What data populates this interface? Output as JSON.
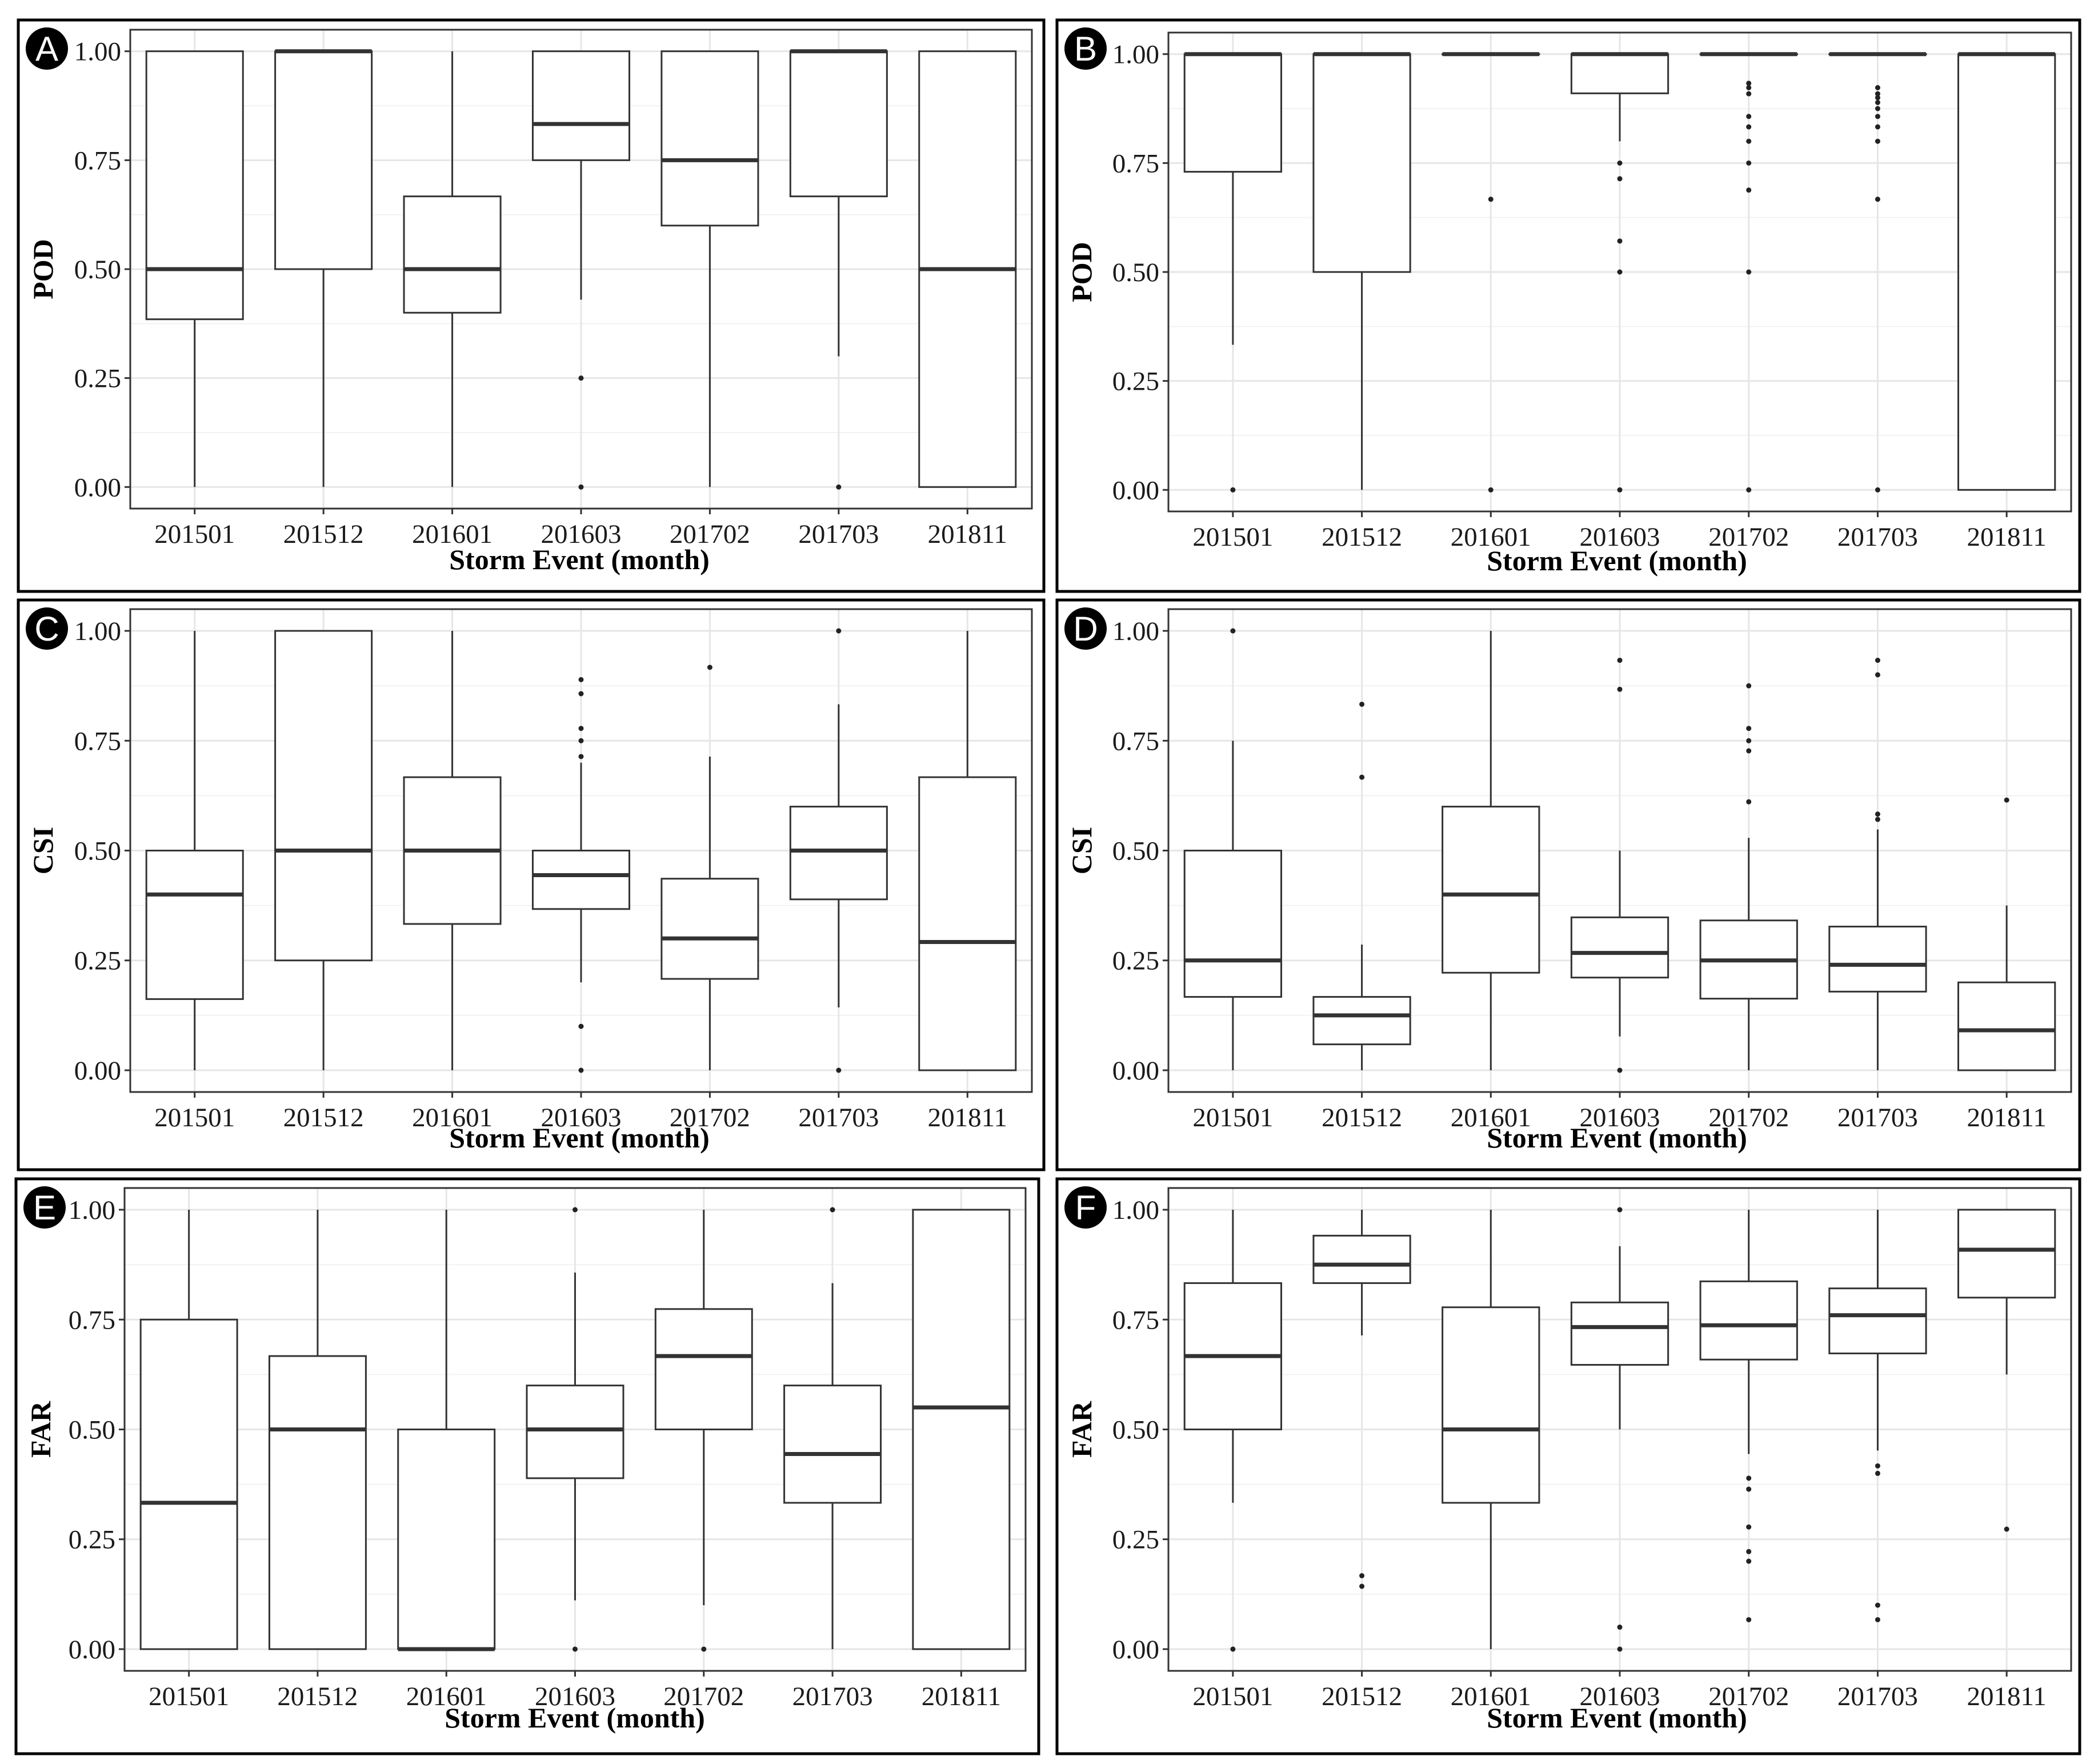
{
  "chart_data": [
    {
      "panel": "A",
      "type": "boxplot",
      "ylabel": "POD",
      "xlabel": "Storm Event (month)",
      "categories": [
        "201501",
        "201512",
        "201601",
        "201603",
        "201702",
        "201703",
        "201811"
      ],
      "yticks": [
        "0.00",
        "0.25",
        "0.50",
        "0.75",
        "1.00"
      ],
      "ylim": [
        0,
        1
      ],
      "grid": true,
      "boxes": [
        {
          "q1": 0.385,
          "median": 0.5,
          "q3": 1.0,
          "lower": 0.0,
          "upper": 1.0,
          "outliers": []
        },
        {
          "q1": 0.5,
          "median": 1.0,
          "q3": 1.0,
          "lower": 0.0,
          "upper": 1.0,
          "outliers": []
        },
        {
          "q1": 0.4,
          "median": 0.5,
          "q3": 0.667,
          "lower": 0.0,
          "upper": 1.0,
          "outliers": []
        },
        {
          "q1": 0.75,
          "median": 0.833,
          "q3": 1.0,
          "lower": 0.43,
          "upper": 1.0,
          "outliers": [
            0.25,
            0.0
          ]
        },
        {
          "q1": 0.6,
          "median": 0.75,
          "q3": 1.0,
          "lower": 0.0,
          "upper": 1.0,
          "outliers": []
        },
        {
          "q1": 0.667,
          "median": 1.0,
          "q3": 1.0,
          "lower": 0.3,
          "upper": 1.0,
          "outliers": [
            0.0
          ]
        },
        {
          "q1": 0.0,
          "median": 0.5,
          "q3": 1.0,
          "lower": 0.0,
          "upper": 1.0,
          "outliers": []
        }
      ]
    },
    {
      "panel": "B",
      "type": "boxplot",
      "ylabel": "POD",
      "xlabel": "Storm Event (month)",
      "categories": [
        "201501",
        "201512",
        "201601",
        "201603",
        "201702",
        "201703",
        "201811"
      ],
      "yticks": [
        "0.00",
        "0.25",
        "0.50",
        "0.75",
        "1.00"
      ],
      "ylim": [
        0,
        1
      ],
      "grid": true,
      "boxes": [
        {
          "q1": 0.73,
          "median": 1.0,
          "q3": 1.0,
          "lower": 0.333,
          "upper": 1.0,
          "outliers": [
            0.0
          ]
        },
        {
          "q1": 0.5,
          "median": 1.0,
          "q3": 1.0,
          "lower": 0.0,
          "upper": 1.0,
          "outliers": []
        },
        {
          "q1": 1.0,
          "median": 1.0,
          "q3": 1.0,
          "lower": 1.0,
          "upper": 1.0,
          "outliers": [
            0.667,
            0.0
          ]
        },
        {
          "q1": 0.91,
          "median": 1.0,
          "q3": 1.0,
          "lower": 0.8,
          "upper": 1.0,
          "outliers": [
            0.75,
            0.714,
            0.571,
            0.5,
            0.0
          ]
        },
        {
          "q1": 1.0,
          "median": 1.0,
          "q3": 1.0,
          "lower": 1.0,
          "upper": 1.0,
          "outliers": [
            0.933,
            0.923,
            0.909,
            0.857,
            0.833,
            0.8,
            0.75,
            0.688,
            0.5,
            0.0
          ]
        },
        {
          "q1": 1.0,
          "median": 1.0,
          "q3": 1.0,
          "lower": 1.0,
          "upper": 1.0,
          "outliers": [
            0.923,
            0.909,
            0.9,
            0.889,
            0.875,
            0.857,
            0.833,
            0.8,
            0.667,
            0.0
          ]
        },
        {
          "q1": 0.0,
          "median": 1.0,
          "q3": 1.0,
          "lower": 0.0,
          "upper": 1.0,
          "outliers": []
        }
      ]
    },
    {
      "panel": "C",
      "type": "boxplot",
      "ylabel": "CSI",
      "xlabel": "Storm Event (month)",
      "categories": [
        "201501",
        "201512",
        "201601",
        "201603",
        "201702",
        "201703",
        "201811"
      ],
      "yticks": [
        "0.00",
        "0.25",
        "0.50",
        "0.75",
        "1.00"
      ],
      "ylim": [
        0,
        1
      ],
      "grid": true,
      "boxes": [
        {
          "q1": 0.162,
          "median": 0.4,
          "q3": 0.5,
          "lower": 0.0,
          "upper": 1.0,
          "outliers": []
        },
        {
          "q1": 0.25,
          "median": 0.5,
          "q3": 1.0,
          "lower": 0.0,
          "upper": 1.0,
          "outliers": []
        },
        {
          "q1": 0.333,
          "median": 0.5,
          "q3": 0.667,
          "lower": 0.0,
          "upper": 1.0,
          "outliers": []
        },
        {
          "q1": 0.367,
          "median": 0.444,
          "q3": 0.5,
          "lower": 0.2,
          "upper": 0.7,
          "outliers": [
            0.889,
            0.857,
            0.778,
            0.75,
            0.714,
            0.1,
            0.0
          ]
        },
        {
          "q1": 0.208,
          "median": 0.3,
          "q3": 0.436,
          "lower": 0.0,
          "upper": 0.714,
          "outliers": [
            0.917
          ]
        },
        {
          "q1": 0.389,
          "median": 0.5,
          "q3": 0.6,
          "lower": 0.143,
          "upper": 0.833,
          "outliers": [
            1.0,
            0.0
          ]
        },
        {
          "q1": 0.0,
          "median": 0.292,
          "q3": 0.667,
          "lower": 0.0,
          "upper": 1.0,
          "outliers": []
        }
      ]
    },
    {
      "panel": "D",
      "type": "boxplot",
      "ylabel": "CSI",
      "xlabel": "Storm Event (month)",
      "categories": [
        "201501",
        "201512",
        "201601",
        "201603",
        "201702",
        "201703",
        "201811"
      ],
      "yticks": [
        "0.00",
        "0.25",
        "0.50",
        "0.75",
        "1.00"
      ],
      "ylim": [
        0,
        1
      ],
      "grid": true,
      "boxes": [
        {
          "q1": 0.167,
          "median": 0.25,
          "q3": 0.5,
          "lower": 0.0,
          "upper": 0.75,
          "outliers": [
            1.0
          ]
        },
        {
          "q1": 0.059,
          "median": 0.125,
          "q3": 0.167,
          "lower": 0.0,
          "upper": 0.286,
          "outliers": [
            0.833,
            0.667
          ]
        },
        {
          "q1": 0.222,
          "median": 0.4,
          "q3": 0.6,
          "lower": 0.0,
          "upper": 1.0,
          "outliers": []
        },
        {
          "q1": 0.211,
          "median": 0.267,
          "q3": 0.348,
          "lower": 0.077,
          "upper": 0.5,
          "outliers": [
            0.933,
            0.867,
            0.0
          ]
        },
        {
          "q1": 0.163,
          "median": 0.25,
          "q3": 0.341,
          "lower": 0.0,
          "upper": 0.529,
          "outliers": [
            0.875,
            0.778,
            0.75,
            0.727,
            0.611
          ]
        },
        {
          "q1": 0.179,
          "median": 0.24,
          "q3": 0.327,
          "lower": 0.0,
          "upper": 0.548,
          "outliers": [
            0.933,
            0.9,
            0.583,
            0.571
          ]
        },
        {
          "q1": 0.0,
          "median": 0.091,
          "q3": 0.2,
          "lower": 0.0,
          "upper": 0.375,
          "outliers": [
            0.615
          ]
        }
      ]
    },
    {
      "panel": "E",
      "type": "boxplot",
      "ylabel": "FAR",
      "xlabel": "Storm Event (month)",
      "categories": [
        "201501",
        "201512",
        "201601",
        "201603",
        "201702",
        "201703",
        "201811"
      ],
      "yticks": [
        "0.00",
        "0.25",
        "0.50",
        "0.75",
        "1.00"
      ],
      "ylim": [
        0,
        1
      ],
      "grid": true,
      "boxes": [
        {
          "q1": 0.0,
          "median": 0.333,
          "q3": 0.75,
          "lower": 0.0,
          "upper": 1.0,
          "outliers": []
        },
        {
          "q1": 0.0,
          "median": 0.5,
          "q3": 0.667,
          "lower": 0.0,
          "upper": 1.0,
          "outliers": []
        },
        {
          "q1": 0.0,
          "median": 0.0,
          "q3": 0.5,
          "lower": 0.0,
          "upper": 1.0,
          "outliers": []
        },
        {
          "q1": 0.389,
          "median": 0.5,
          "q3": 0.6,
          "lower": 0.111,
          "upper": 0.857,
          "outliers": [
            1.0,
            0.0
          ]
        },
        {
          "q1": 0.5,
          "median": 0.667,
          "q3": 0.774,
          "lower": 0.1,
          "upper": 1.0,
          "outliers": [
            0.0
          ]
        },
        {
          "q1": 0.333,
          "median": 0.444,
          "q3": 0.6,
          "lower": 0.0,
          "upper": 0.833,
          "outliers": [
            1.0
          ]
        },
        {
          "q1": 0.0,
          "median": 0.55,
          "q3": 1.0,
          "lower": 0.0,
          "upper": 1.0,
          "outliers": []
        }
      ]
    },
    {
      "panel": "F",
      "type": "boxplot",
      "ylabel": "FAR",
      "xlabel": "Storm Event (month)",
      "categories": [
        "201501",
        "201512",
        "201601",
        "201603",
        "201702",
        "201703",
        "201811"
      ],
      "yticks": [
        "0.00",
        "0.25",
        "0.50",
        "0.75",
        "1.00"
      ],
      "ylim": [
        0,
        1
      ],
      "grid": true,
      "boxes": [
        {
          "q1": 0.5,
          "median": 0.667,
          "q3": 0.833,
          "lower": 0.333,
          "upper": 1.0,
          "outliers": [
            0.0
          ]
        },
        {
          "q1": 0.833,
          "median": 0.875,
          "q3": 0.941,
          "lower": 0.714,
          "upper": 1.0,
          "outliers": [
            0.167,
            0.143
          ]
        },
        {
          "q1": 0.333,
          "median": 0.5,
          "q3": 0.778,
          "lower": 0.0,
          "upper": 1.0,
          "outliers": []
        },
        {
          "q1": 0.647,
          "median": 0.733,
          "q3": 0.789,
          "lower": 0.5,
          "upper": 0.917,
          "outliers": [
            1.0,
            0.05,
            0.0
          ]
        },
        {
          "q1": 0.659,
          "median": 0.737,
          "q3": 0.837,
          "lower": 0.444,
          "upper": 1.0,
          "outliers": [
            0.389,
            0.364,
            0.278,
            0.222,
            0.2,
            0.067
          ]
        },
        {
          "q1": 0.673,
          "median": 0.76,
          "q3": 0.821,
          "lower": 0.452,
          "upper": 1.0,
          "outliers": [
            0.417,
            0.4,
            0.1,
            0.067
          ]
        },
        {
          "q1": 0.8,
          "median": 0.909,
          "q3": 1.0,
          "lower": 0.625,
          "upper": 1.0,
          "outliers": [
            0.273
          ]
        }
      ]
    }
  ]
}
